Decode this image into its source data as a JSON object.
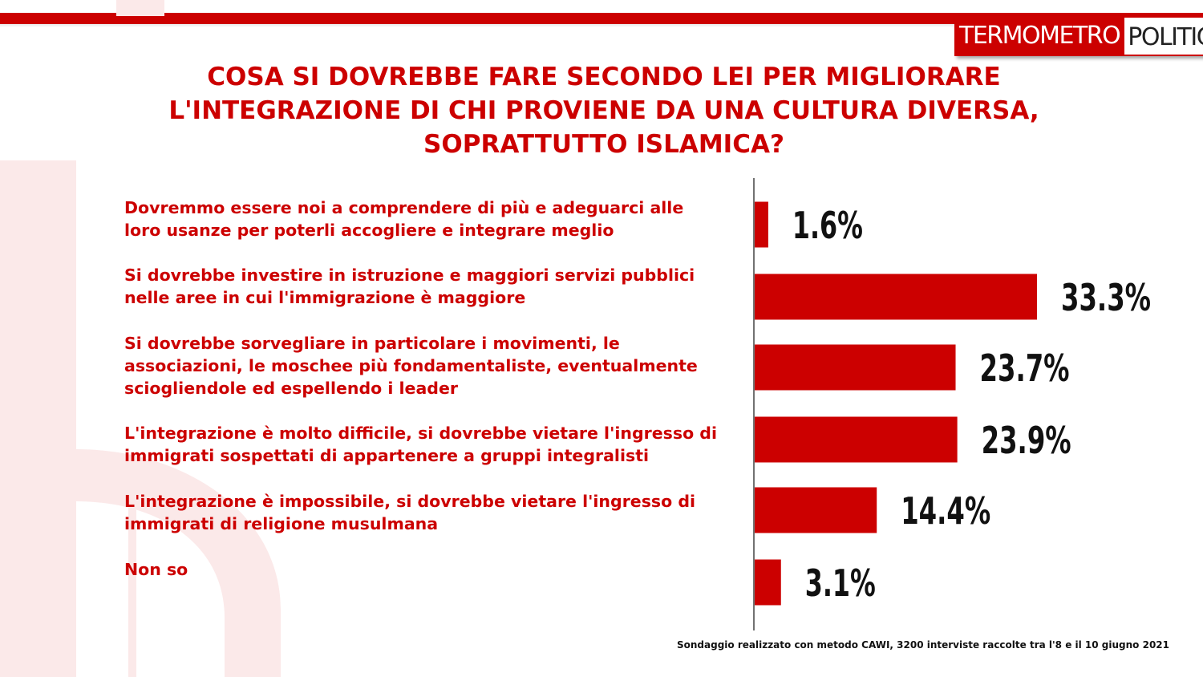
{
  "logo": {
    "part1": "TERMOMETRO",
    "part2": "POLITICO"
  },
  "title_lines": [
    "COSA SI DOVREBBE FARE SECONDO LEI PER MIGLIORARE",
    "L'INTEGRAZIONE DI CHI PROVIENE DA UNA CULTURA DIVERSA,",
    "SOPRATTUTTO ISLAMICA?"
  ],
  "category_lines": [
    [
      "Dovremmo essere noi a comprendere di più e adeguarci alle",
      "loro usanze per poterli accogliere e integrare meglio"
    ],
    [
      "Si dovrebbe investire in istruzione e maggiori servizi pubblici",
      "nelle aree in cui l'immigrazione è maggiore"
    ],
    [
      "Si dovrebbe sorvegliare in particolare i movimenti, le",
      "associazioni, le moschee più fondamentaliste, eventualmente",
      "sciogliendole ed espellendo i leader"
    ],
    [
      "L'integrazione è molto difficile, si dovrebbe vietare l'ingresso di",
      "immigrati sospettati di appartenere a gruppi integralisti"
    ],
    [
      "L'integrazione è impossibile, si dovrebbe vietare l'ingresso di",
      "immigrati di religione musulmana"
    ],
    [
      "Non so"
    ]
  ],
  "chart_data": {
    "type": "bar",
    "orientation": "horizontal",
    "categories": [
      "Dovremmo essere noi a comprendere di più e adeguarci alle loro usanze per poterli accogliere e integrare meglio",
      "Si dovrebbe investire in istruzione e maggiori servizi pubblici nelle aree in cui l'immigrazione è maggiore",
      "Si dovrebbe sorvegliare in particolare i movimenti, le associazioni, le moschee più fondamentaliste, eventualmente sciogliendole ed espellendo i leader",
      "L'integrazione è molto difficile, si dovrebbe vietare l'ingresso di immigrati sospettati di appartenere a gruppi integralisti",
      "L'integrazione è impossibile, si dovrebbe vietare l'ingresso di immigrati di religione musulmana",
      "Non so"
    ],
    "values": [
      1.6,
      33.3,
      23.7,
      23.9,
      14.4,
      3.1
    ],
    "value_labels": [
      "1.6%",
      "33.3%",
      "23.7%",
      "23.9%",
      "14.4%",
      "3.1%"
    ],
    "unit": "%",
    "xlim": [
      0,
      35
    ],
    "grid": false,
    "legend": "none",
    "bar_color": "#cc0000"
  },
  "footnote": "Sondaggio realizzato con metodo CAWI, 3200 interviste raccolte tra l'8  e il 10 giugno 2021",
  "colors": {
    "accent": "#cc0000",
    "text_dark": "#111111",
    "watermark": "#fbe9e9"
  }
}
